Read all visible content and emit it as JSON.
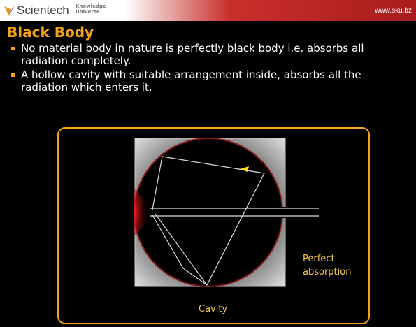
{
  "header": {
    "brand": "Scientech",
    "tagline": [
      "Knowledge",
      "Universe"
    ],
    "url": "www.sku.bz"
  },
  "title": "Black Body",
  "bullets": [
    "No material body in nature is perfectly black body i.e. absorbs all radiation completely.",
    "A hollow cavity with suitable arrangement inside, absorbs all the radiation which enters it."
  ],
  "diagram": {
    "absorption_label": "Perfect absorption",
    "cavity_label": "Cavity"
  }
}
